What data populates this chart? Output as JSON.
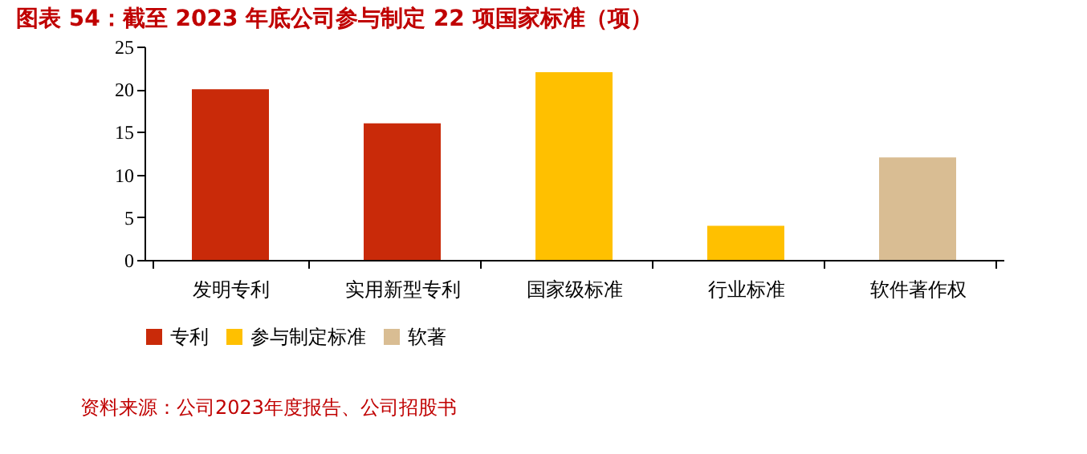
{
  "chart_data": {
    "type": "bar",
    "title": "图表 54：截至 2023 年底公司参与制定 22 项国家标准（项）",
    "categories": [
      "发明专利",
      "实用新型专利",
      "国家级标准",
      "行业标准",
      "软件著作权"
    ],
    "series": [
      {
        "name": "专利",
        "color": "#c92a09",
        "values": [
          20,
          16,
          null,
          null,
          null
        ]
      },
      {
        "name": "参与制定标准",
        "color": "#ffc000",
        "values": [
          null,
          null,
          22,
          4,
          null
        ]
      },
      {
        "name": "软著",
        "color": "#d9bd93",
        "values": [
          null,
          null,
          null,
          null,
          12
        ]
      }
    ],
    "ylim": [
      0,
      25
    ],
    "yticks": [
      0,
      5,
      10,
      15,
      20,
      25
    ],
    "grid": false,
    "legend": "bottom",
    "annotations": [
      "资料来源：公司2023年度报告、公司招股书"
    ]
  }
}
